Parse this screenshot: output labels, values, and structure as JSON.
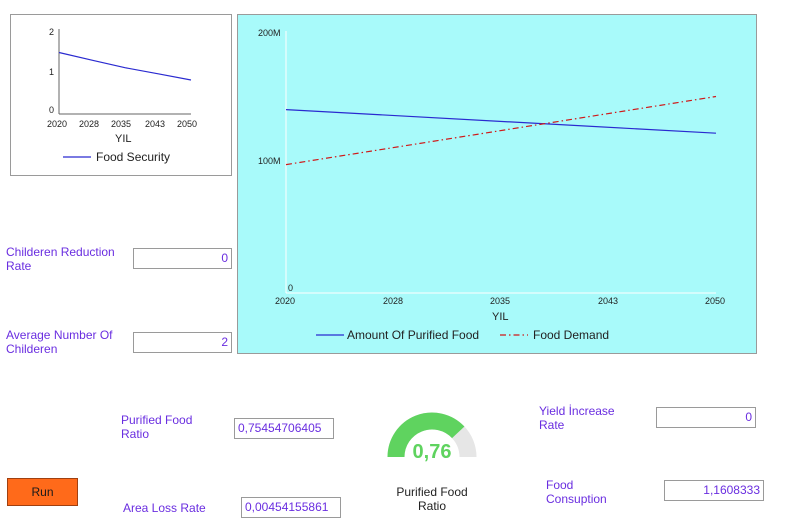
{
  "small_chart": {
    "y_ticks": [
      "2",
      "1",
      "0"
    ],
    "x_ticks": [
      "2020",
      "2028",
      "2035",
      "2043",
      "2050"
    ],
    "xlabel": "YIL",
    "legend": "Food Security"
  },
  "main_chart": {
    "y_ticks": [
      "200M",
      "100M",
      "0"
    ],
    "x_ticks": [
      "2020",
      "2028",
      "2035",
      "2043",
      "2050"
    ],
    "xlabel": "YIL",
    "legend_a": "Amount Of Purified Food",
    "legend_b": "Food Demand",
    "bg_color": "#a8fafa"
  },
  "chart_data": [
    {
      "type": "line",
      "x": [
        2020,
        2050
      ],
      "ylim": [
        0,
        2
      ],
      "xlim": [
        2020,
        2050
      ],
      "xlabel": "YIL",
      "series": [
        {
          "name": "Food Security",
          "x": [
            2020,
            2028,
            2035,
            2043,
            2050
          ],
          "values": [
            1.5,
            1.3,
            1.13,
            0.97,
            0.83
          ],
          "color": "#2a2ad0",
          "style": "solid"
        }
      ]
    },
    {
      "type": "line",
      "xlim": [
        2020,
        2050
      ],
      "ylim": [
        0,
        200000000
      ],
      "xlabel": "YIL",
      "series": [
        {
          "name": "Amount Of Purified Food",
          "x": [
            2020,
            2050
          ],
          "values": [
            140000000,
            122000000
          ],
          "color": "#2a2ad0",
          "style": "solid"
        },
        {
          "name": "Food Demand",
          "x": [
            2020,
            2050
          ],
          "values": [
            98000000,
            150000000
          ],
          "color": "#d01818",
          "style": "dashdot"
        }
      ]
    }
  ],
  "inputs": {
    "childeren_reduction_rate_label": "Childeren Reduction Rate",
    "childeren_reduction_rate_value": "0",
    "average_number_label": "Average Number Of Childeren",
    "average_number_value": "2",
    "purified_food_ratio_label": "Purified Food Ratio",
    "purified_food_ratio_value": "0,75454706405",
    "area_loss_rate_label": "Area Loss Rate",
    "area_loss_rate_value": "0,00454155861",
    "yield_increase_label": "Yield İncrease Rate",
    "yield_increase_value": "0",
    "food_consumption_label": "Food Consuption",
    "food_consumption_value": "1,1608333"
  },
  "gauge": {
    "value_text": "0,76",
    "fraction": 0.76,
    "caption": "Purified Food Ratio",
    "color": "#5fd35f",
    "track_color": "#e6e6e6"
  },
  "run_label": "Run",
  "colors": {
    "label_purple": "#6a2ee0",
    "run_orange": "#ff6a1a"
  }
}
